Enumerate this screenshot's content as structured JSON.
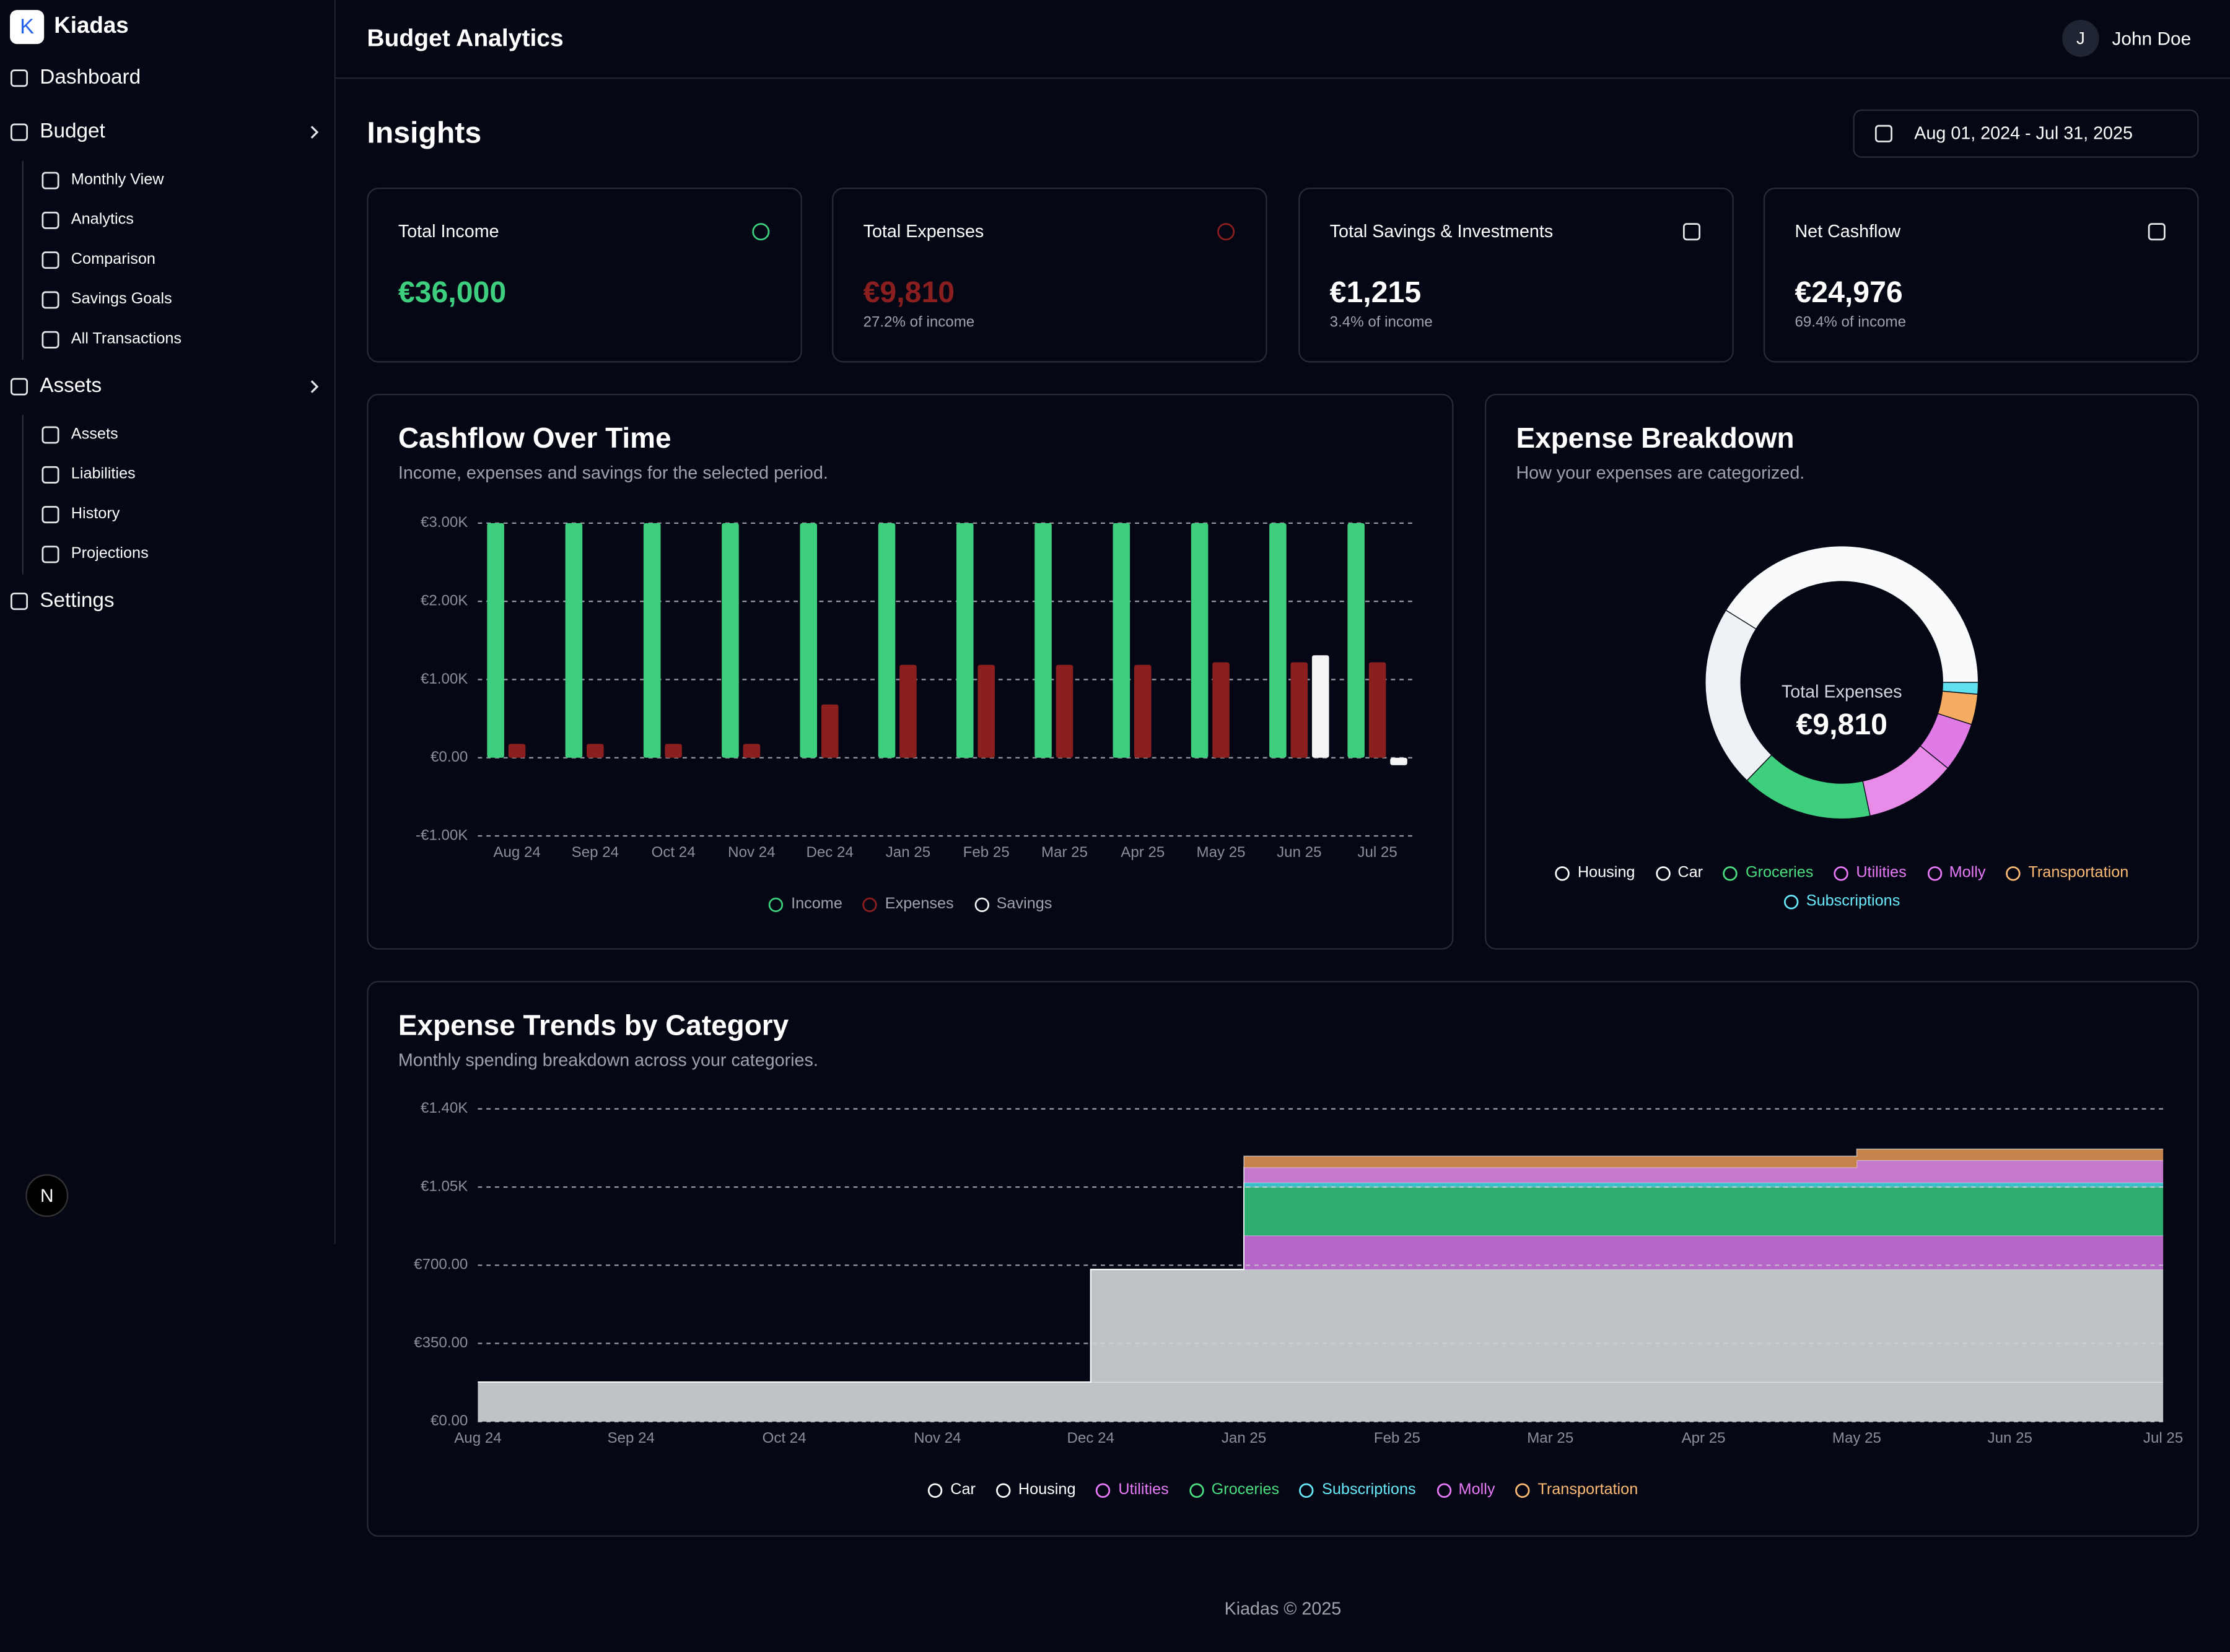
{
  "sidebar": {
    "logo": "K",
    "brand": "Kiadas",
    "nav": [
      {
        "label": "Dashboard"
      },
      {
        "label": "Budget",
        "children": [
          "Monthly View",
          "Analytics",
          "Comparison",
          "Savings Goals",
          "All Transactions"
        ]
      },
      {
        "label": "Assets",
        "children": [
          "Assets",
          "Liabilities",
          "History",
          "Projections"
        ]
      },
      {
        "label": "Settings"
      }
    ],
    "dev_badge": "N"
  },
  "header": {
    "title": "Budget Analytics",
    "user_initial": "J",
    "user_name": "John Doe"
  },
  "insights": {
    "title": "Insights",
    "date_range": "Aug 01, 2024 - Jul 31, 2025"
  },
  "cards": [
    {
      "label": "Total Income",
      "value": "€36,000",
      "color": "#3ecf7e"
    },
    {
      "label": "Total Expenses",
      "value": "€9,810",
      "note": "27.2% of income",
      "color": "#8b1e1e"
    },
    {
      "label": "Total Savings & Investments",
      "value": "€1,215",
      "note": "3.4% of income",
      "color": "#ffffff"
    },
    {
      "label": "Net Cashflow",
      "value": "€24,976",
      "note": "69.4% of income",
      "color": "#ffffff"
    }
  ],
  "cashflow": {
    "type": "bar",
    "title": "Cashflow Over Time",
    "subtitle": "Income, expenses and savings for the selected period.",
    "categories": [
      "Aug 24",
      "Sep 24",
      "Oct 24",
      "Nov 24",
      "Dec 24",
      "Jan 25",
      "Feb 25",
      "Mar 25",
      "Apr 25",
      "May 25",
      "Jun 25",
      "Jul 25"
    ],
    "series": [
      {
        "name": "Income",
        "color": "#3ecf7e",
        "values": [
          3000,
          3000,
          3000,
          3000,
          3000,
          3000,
          3000,
          3000,
          3000,
          3000,
          3000,
          3000
        ]
      },
      {
        "name": "Expenses",
        "color": "#8b1e1e",
        "values": [
          177,
          177,
          177,
          177,
          681,
          1188,
          1188,
          1188,
          1188,
          1220,
          1220,
          1220
        ]
      },
      {
        "name": "Savings",
        "color": "#f4f4f5",
        "values": [
          0,
          0,
          0,
          0,
          0,
          0,
          0,
          0,
          0,
          0,
          1310,
          -95
        ]
      }
    ],
    "ylim": [
      -1000,
      3000
    ],
    "yticks": [
      {
        "value": -1000,
        "label": "-€1.00K"
      },
      {
        "value": 0,
        "label": "€0.00"
      },
      {
        "value": 1000,
        "label": "€1.00K"
      },
      {
        "value": 2000,
        "label": "€2.00K"
      },
      {
        "value": 3000,
        "label": "€3.00K"
      }
    ],
    "grid": true
  },
  "breakdown": {
    "type": "pie",
    "title": "Expense Breakdown",
    "subtitle": "How your expenses are categorized.",
    "center_label": "Total Expenses",
    "center_value": "€9,810",
    "categories": [
      "Housing",
      "Car",
      "Groceries",
      "Utilities",
      "Molly",
      "Transportation",
      "Subscriptions"
    ],
    "values": [
      4035,
      2124,
      1526,
      1063,
      572,
      354,
      136
    ],
    "colors": [
      "#f8fafc",
      "#eef2f6",
      "#3ecf7e",
      "#e98be9",
      "#e07ae6",
      "#f6ad62",
      "#5ee0ee"
    ],
    "label_colors": [
      "#ffffff",
      "#ffffff",
      "#4ade80",
      "#e879f9",
      "#e879f9",
      "#fdba74",
      "#67e8f9"
    ]
  },
  "trends": {
    "type": "area",
    "title": "Expense Trends by Category",
    "subtitle": "Monthly spending breakdown across your categories.",
    "stacked": true,
    "categories": [
      "Aug 24",
      "Sep 24",
      "Oct 24",
      "Nov 24",
      "Dec 24",
      "Jan 25",
      "Feb 25",
      "Mar 25",
      "Apr 25",
      "May 25",
      "Jun 25",
      "Jul 25"
    ],
    "series": [
      {
        "name": "Car",
        "color": "#c9ccd1",
        "label_color": "#ffffff",
        "values": [
          177,
          177,
          177,
          177,
          177,
          177,
          177,
          177,
          177,
          177,
          177,
          177
        ]
      },
      {
        "name": "Housing",
        "color": "#c9ccd1",
        "label_color": "#ffffff",
        "values": [
          0,
          0,
          0,
          0,
          504,
          504,
          504,
          504,
          504,
          504,
          504,
          504
        ]
      },
      {
        "name": "Utilities",
        "color": "#c06bd0",
        "label_color": "#e879f9",
        "values": [
          0,
          0,
          0,
          0,
          0,
          152,
          152,
          152,
          152,
          152,
          152,
          152
        ]
      },
      {
        "name": "Groceries",
        "color": "#2fb574",
        "label_color": "#4ade80",
        "values": [
          0,
          0,
          0,
          0,
          0,
          218,
          218,
          218,
          218,
          218,
          218,
          218
        ]
      },
      {
        "name": "Subscriptions",
        "color": "#3fc7d4",
        "label_color": "#67e8f9",
        "values": [
          0,
          0,
          0,
          0,
          0,
          19,
          19,
          19,
          19,
          19,
          19,
          19
        ]
      },
      {
        "name": "Molly",
        "color": "#d07fd6",
        "label_color": "#e879f9",
        "values": [
          0,
          0,
          0,
          0,
          0,
          68,
          68,
          68,
          68,
          100,
          100,
          100
        ]
      },
      {
        "name": "Transportation",
        "color": "#d08a4e",
        "label_color": "#fdba74",
        "values": [
          0,
          0,
          0,
          0,
          0,
          50,
          50,
          50,
          50,
          50,
          50,
          50
        ]
      }
    ],
    "ylim": [
      0,
      1400
    ],
    "yticks": [
      {
        "value": 0,
        "label": "€0.00"
      },
      {
        "value": 350,
        "label": "€350.00"
      },
      {
        "value": 700,
        "label": "€700.00"
      },
      {
        "value": 1050,
        "label": "€1.05K"
      },
      {
        "value": 1400,
        "label": "€1.40K"
      }
    ],
    "grid": true
  },
  "footer": "Kiadas © 2025"
}
